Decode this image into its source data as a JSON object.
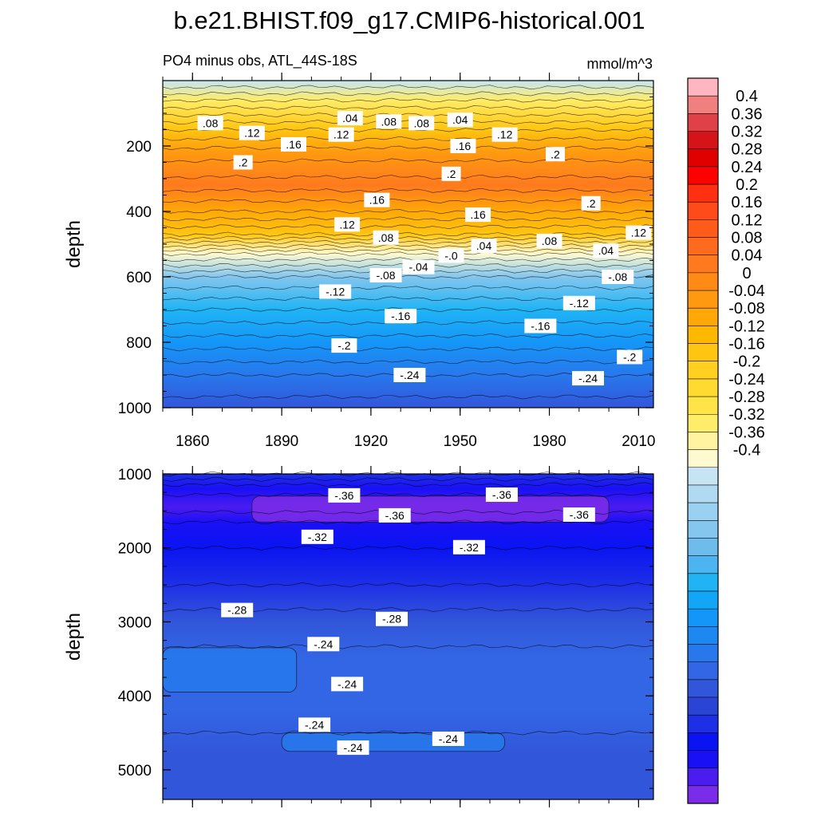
{
  "title": "b.e21.BHIST.f09_g17.CMIP6-historical.001",
  "subtitle_left": "PO4 minus obs, ATL_44S-18S",
  "subtitle_right": "mmol/m^3",
  "chart_data": [
    {
      "type": "heatmap",
      "name": "upper",
      "title": "PO4 minus obs, ATL_44S-18S",
      "units": "mmol/m^3",
      "ylabel": "depth",
      "xlabel": "",
      "xlim": [
        1850,
        2015
      ],
      "ylim": [
        1000,
        0
      ],
      "x_ticks": [
        1860,
        1890,
        1920,
        1950,
        1980,
        2010
      ],
      "y_ticks": [
        200,
        400,
        600,
        800,
        1000
      ],
      "depth_profile": [
        {
          "depth": 0,
          "value": -0.02
        },
        {
          "depth": 60,
          "value": 0.04
        },
        {
          "depth": 150,
          "value": 0.12
        },
        {
          "depth": 220,
          "value": 0.17
        },
        {
          "depth": 320,
          "value": 0.21
        },
        {
          "depth": 400,
          "value": 0.16
        },
        {
          "depth": 470,
          "value": 0.1
        },
        {
          "depth": 530,
          "value": 0.0
        },
        {
          "depth": 600,
          "value": -0.08
        },
        {
          "depth": 700,
          "value": -0.14
        },
        {
          "depth": 800,
          "value": -0.19
        },
        {
          "depth": 900,
          "value": -0.24
        },
        {
          "depth": 1000,
          "value": -0.27
        }
      ],
      "contour_labels": [
        {
          "text": ".08",
          "x": 1866,
          "y": 130
        },
        {
          "text": ".04",
          "x": 1913,
          "y": 115
        },
        {
          "text": ".08",
          "x": 1926,
          "y": 125
        },
        {
          "text": ".08",
          "x": 1937,
          "y": 130
        },
        {
          "text": ".04",
          "x": 1950,
          "y": 120
        },
        {
          "text": ".12",
          "x": 1880,
          "y": 160
        },
        {
          "text": ".12",
          "x": 1910,
          "y": 165
        },
        {
          "text": ".12",
          "x": 1965,
          "y": 165
        },
        {
          "text": ".16",
          "x": 1894,
          "y": 195
        },
        {
          "text": ".16",
          "x": 1951,
          "y": 200
        },
        {
          "text": ".2",
          "x": 1877,
          "y": 250
        },
        {
          "text": ".2",
          "x": 1947,
          "y": 285
        },
        {
          "text": ".2",
          "x": 1982,
          "y": 225
        },
        {
          "text": ".2",
          "x": 1994,
          "y": 375
        },
        {
          "text": ".16",
          "x": 1922,
          "y": 365
        },
        {
          "text": ".16",
          "x": 1956,
          "y": 410
        },
        {
          "text": ".12",
          "x": 1912,
          "y": 440
        },
        {
          "text": ".08",
          "x": 1925,
          "y": 480
        },
        {
          "text": ".08",
          "x": 1980,
          "y": 490
        },
        {
          "text": ".12",
          "x": 2010,
          "y": 465
        },
        {
          "text": ".04",
          "x": 1958,
          "y": 505
        },
        {
          "text": ".04",
          "x": 1999,
          "y": 520
        },
        {
          "text": "-.0",
          "x": 1947,
          "y": 535
        },
        {
          "text": "-.04",
          "x": 1936,
          "y": 570
        },
        {
          "text": "-.08",
          "x": 1925,
          "y": 595
        },
        {
          "text": "-.08",
          "x": 2003,
          "y": 600
        },
        {
          "text": "-.12",
          "x": 1908,
          "y": 645
        },
        {
          "text": "-.12",
          "x": 1990,
          "y": 680
        },
        {
          "text": "-.16",
          "x": 1930,
          "y": 720
        },
        {
          "text": "-.16",
          "x": 1977,
          "y": 750
        },
        {
          "text": "-.2",
          "x": 1911,
          "y": 810
        },
        {
          "text": "-.2",
          "x": 2007,
          "y": 845
        },
        {
          "text": "-.24",
          "x": 1933,
          "y": 900
        },
        {
          "text": "-.24",
          "x": 1993,
          "y": 910
        }
      ]
    },
    {
      "type": "heatmap",
      "name": "lower",
      "ylabel": "depth",
      "xlabel": "",
      "xlim": [
        1850,
        2015
      ],
      "ylim": [
        5400,
        1000
      ],
      "y_ticks": [
        1000,
        2000,
        3000,
        4000,
        5000
      ],
      "depth_profile": [
        {
          "depth": 1000,
          "value": -0.3
        },
        {
          "depth": 1200,
          "value": -0.355
        },
        {
          "depth": 1450,
          "value": -0.37
        },
        {
          "depth": 1650,
          "value": -0.34
        },
        {
          "depth": 2000,
          "value": -0.32
        },
        {
          "depth": 2500,
          "value": -0.3
        },
        {
          "depth": 3000,
          "value": -0.27
        },
        {
          "depth": 3500,
          "value": -0.255
        },
        {
          "depth": 4200,
          "value": -0.255
        },
        {
          "depth": 4800,
          "value": -0.265
        },
        {
          "depth": 5400,
          "value": -0.27
        }
      ],
      "features": [
        {
          "label": "-.24 patch",
          "x_range": [
            1850,
            1895
          ],
          "depth_range": [
            3350,
            3950
          ],
          "value": -0.23
        },
        {
          "label": "-.24 band",
          "x_range": [
            1890,
            1965
          ],
          "depth_range": [
            4500,
            4750
          ],
          "value": -0.23
        },
        {
          "label": "-.36 core",
          "x_range": [
            1880,
            2000
          ],
          "depth_range": [
            1300,
            1650
          ],
          "value": -0.38
        }
      ],
      "contour_labels": [
        {
          "text": "-.36",
          "x": 1911,
          "y": 1290
        },
        {
          "text": "-.36",
          "x": 1928,
          "y": 1560
        },
        {
          "text": "-.36",
          "x": 1964,
          "y": 1280
        },
        {
          "text": "-.36",
          "x": 1990,
          "y": 1550
        },
        {
          "text": "-.32",
          "x": 1902,
          "y": 1850
        },
        {
          "text": "-.32",
          "x": 1953,
          "y": 1990
        },
        {
          "text": "-.28",
          "x": 1875,
          "y": 2840
        },
        {
          "text": "-.28",
          "x": 1927,
          "y": 2960
        },
        {
          "text": "-.24",
          "x": 1904,
          "y": 3300
        },
        {
          "text": "-.24",
          "x": 1912,
          "y": 3840
        },
        {
          "text": "-.24",
          "x": 1901,
          "y": 4390
        },
        {
          "text": "-.24",
          "x": 1914,
          "y": 4700
        },
        {
          "text": "-.24",
          "x": 1946,
          "y": 4580
        }
      ]
    }
  ],
  "colorbar": {
    "levels": [
      0.4,
      0.36,
      0.32,
      0.28,
      0.24,
      0.2,
      0.16,
      0.12,
      0.08,
      0.04,
      0,
      -0.04,
      -0.08,
      -0.12,
      -0.16,
      -0.2,
      -0.24,
      -0.28,
      -0.32,
      -0.36,
      -0.4
    ],
    "labels": [
      "0.4",
      "0.36",
      "0.32",
      "0.28",
      "0.24",
      "0.2",
      "0.16",
      "0.12",
      "0.08",
      "0.04",
      "0",
      "-0.04",
      "-0.08",
      "-0.12",
      "-0.16",
      "-0.2",
      "-0.24",
      "-0.28",
      "-0.32",
      "-0.36",
      "-0.4"
    ],
    "colors": [
      "#FFB6C1",
      "#F08080",
      "#E04048",
      "#D41418",
      "#E00000",
      "#FF0000",
      "#FF3010",
      "#FF4A1A",
      "#FF5C1C",
      "#FF6A1E",
      "#FF7A1E",
      "#FF8A16",
      "#FF9A10",
      "#FFA808",
      "#FFB800",
      "#FFC510",
      "#FFD020",
      "#FFDA30",
      "#FFE448",
      "#FFEC68",
      "#FFF2A0",
      "#FFFAD0",
      "#C6E4F4",
      "#B0DAF2",
      "#9AD0F0",
      "#84C6EE",
      "#6EBCEC",
      "#4CB4F0",
      "#20B4F4",
      "#14A6F6",
      "#1496F8",
      "#1E88F2",
      "#2878EC",
      "#3266E4",
      "#3256DA",
      "#2A44D6",
      "#1E30E6",
      "#0A14F2",
      "#1A10F6",
      "#4A1CF0",
      "#7A2CE8"
    ]
  }
}
